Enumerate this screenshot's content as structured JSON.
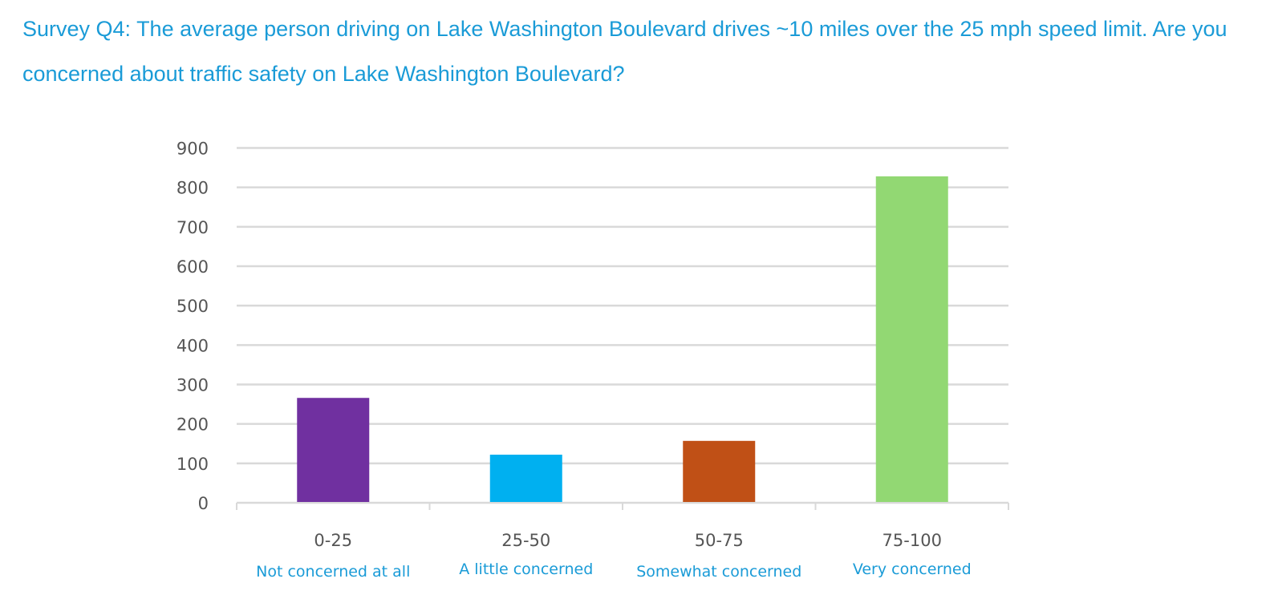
{
  "chart_data": {
    "type": "bar",
    "title": "Survey Q4: The average person driving on Lake Washington Boulevard drives ~10 miles over the 25 mph speed limit. Are you concerned about traffic safety on Lake Washington Boulevard?",
    "categories": [
      "0-25",
      "25-50",
      "50-75",
      "75-100"
    ],
    "category_sublabels": [
      "Not concerned at all",
      "A little concerned",
      "Somewhat concerned",
      "Very concerned"
    ],
    "values": [
      266,
      122,
      157,
      828
    ],
    "colors": [
      "#7030a0",
      "#00b0f0",
      "#c05016",
      "#92d873"
    ],
    "xlabel": "",
    "ylabel": "",
    "ylim": [
      0,
      900
    ],
    "yticks": [
      0,
      100,
      200,
      300,
      400,
      500,
      600,
      700,
      800,
      900
    ],
    "grid": true,
    "legend": "none"
  }
}
